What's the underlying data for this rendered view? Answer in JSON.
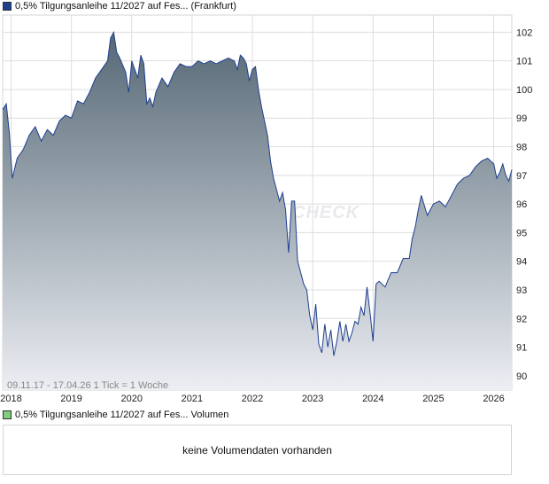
{
  "legend": {
    "price_label": "0,5% Tilgungsanleihe 11/2027 auf Fes... (Frankfurt)",
    "price_color": "#1f3f8f",
    "volume_label": "0,5% Tilgungsanleihe 11/2027 auf Fes... Volumen",
    "volume_color": "#7fcf7f"
  },
  "period_info": "09.11.17 - 17.04.26   1 Tick = 1 Woche",
  "watermark": "CHECK",
  "volume": {
    "empty_message": "keine Volumendaten vorhanden"
  },
  "chart_data": {
    "type": "area",
    "title": "",
    "xlabel": "",
    "ylabel": "",
    "ylim": [
      89.5,
      102.6
    ],
    "xlim": [
      2017.86,
      2026.3
    ],
    "yticks": [
      90,
      91,
      92,
      93,
      94,
      95,
      96,
      97,
      98,
      99,
      100,
      101,
      102
    ],
    "xticks": [
      "2018",
      "2019",
      "2020",
      "2021",
      "2022",
      "2023",
      "2024",
      "2025",
      "2026"
    ],
    "grid": true,
    "colors": {
      "line": "#1f3f8f",
      "fill_top": "#556875",
      "fill_bottom": "#eceef3"
    },
    "series": [
      {
        "x": [
          2017.86,
          2017.92,
          2017.97,
          2018.02,
          2018.1,
          2018.2,
          2018.3,
          2018.4,
          2018.5,
          2018.6,
          2018.7,
          2018.8,
          2018.9,
          2019.0,
          2019.1,
          2019.2,
          2019.3,
          2019.4,
          2019.5,
          2019.6,
          2019.65,
          2019.7,
          2019.75,
          2019.8,
          2019.9,
          2019.95,
          2020.0,
          2020.1,
          2020.15,
          2020.2,
          2020.25,
          2020.3,
          2020.35,
          2020.4,
          2020.5,
          2020.6,
          2020.7,
          2020.8,
          2020.9,
          2021.0,
          2021.1,
          2021.2,
          2021.3,
          2021.4,
          2021.5,
          2021.6,
          2021.7,
          2021.75,
          2021.8,
          2021.85,
          2021.9,
          2021.95,
          2022.0,
          2022.05,
          2022.1,
          2022.15,
          2022.2,
          2022.25,
          2022.3,
          2022.35,
          2022.4,
          2022.45,
          2022.5,
          2022.55,
          2022.6,
          2022.65,
          2022.7,
          2022.75,
          2022.8,
          2022.85,
          2022.9,
          2022.95,
          2023.0,
          2023.05,
          2023.1,
          2023.15,
          2023.2,
          2023.25,
          2023.3,
          2023.35,
          2023.4,
          2023.45,
          2023.5,
          2023.55,
          2023.6,
          2023.65,
          2023.7,
          2023.75,
          2023.8,
          2023.85,
          2023.9,
          2023.95,
          2024.0,
          2024.05,
          2024.1,
          2024.2,
          2024.3,
          2024.4,
          2024.5,
          2024.6,
          2024.65,
          2024.7,
          2024.75,
          2024.8,
          2024.9,
          2025.0,
          2025.1,
          2025.2,
          2025.3,
          2025.4,
          2025.5,
          2025.6,
          2025.7,
          2025.75,
          2025.8,
          2025.9,
          2026.0,
          2026.05,
          2026.1,
          2026.15,
          2026.2,
          2026.25,
          2026.3
        ],
        "values": [
          99.3,
          99.5,
          98.5,
          96.9,
          97.6,
          97.9,
          98.4,
          98.7,
          98.2,
          98.6,
          98.4,
          98.9,
          99.1,
          99.0,
          99.6,
          99.5,
          99.9,
          100.4,
          100.7,
          101.0,
          101.8,
          102.0,
          101.3,
          101.1,
          100.6,
          99.9,
          101.0,
          100.4,
          101.2,
          100.9,
          99.5,
          99.7,
          99.4,
          99.9,
          100.4,
          100.1,
          100.6,
          100.9,
          100.8,
          100.8,
          101.0,
          100.9,
          101.0,
          100.9,
          101.0,
          101.1,
          101.0,
          100.7,
          101.2,
          101.1,
          100.9,
          100.3,
          100.7,
          100.8,
          100.0,
          99.4,
          98.9,
          98.4,
          97.5,
          96.9,
          96.5,
          96.1,
          96.4,
          95.8,
          94.3,
          96.1,
          96.1,
          94.0,
          93.6,
          93.2,
          93.0,
          92.1,
          91.6,
          92.5,
          91.1,
          90.8,
          91.8,
          91.0,
          91.6,
          90.7,
          91.2,
          91.9,
          91.2,
          91.8,
          91.2,
          91.5,
          91.9,
          91.8,
          92.4,
          92.1,
          93.1,
          92.2,
          91.2,
          93.2,
          93.3,
          93.1,
          93.6,
          93.6,
          94.1,
          94.1,
          94.8,
          95.2,
          95.8,
          96.3,
          95.6,
          96.0,
          96.1,
          95.9,
          96.3,
          96.7,
          96.9,
          97.0,
          97.3,
          97.4,
          97.5,
          97.6,
          97.4,
          96.9,
          97.1,
          97.4,
          97.0,
          96.8,
          97.2
        ]
      }
    ]
  }
}
